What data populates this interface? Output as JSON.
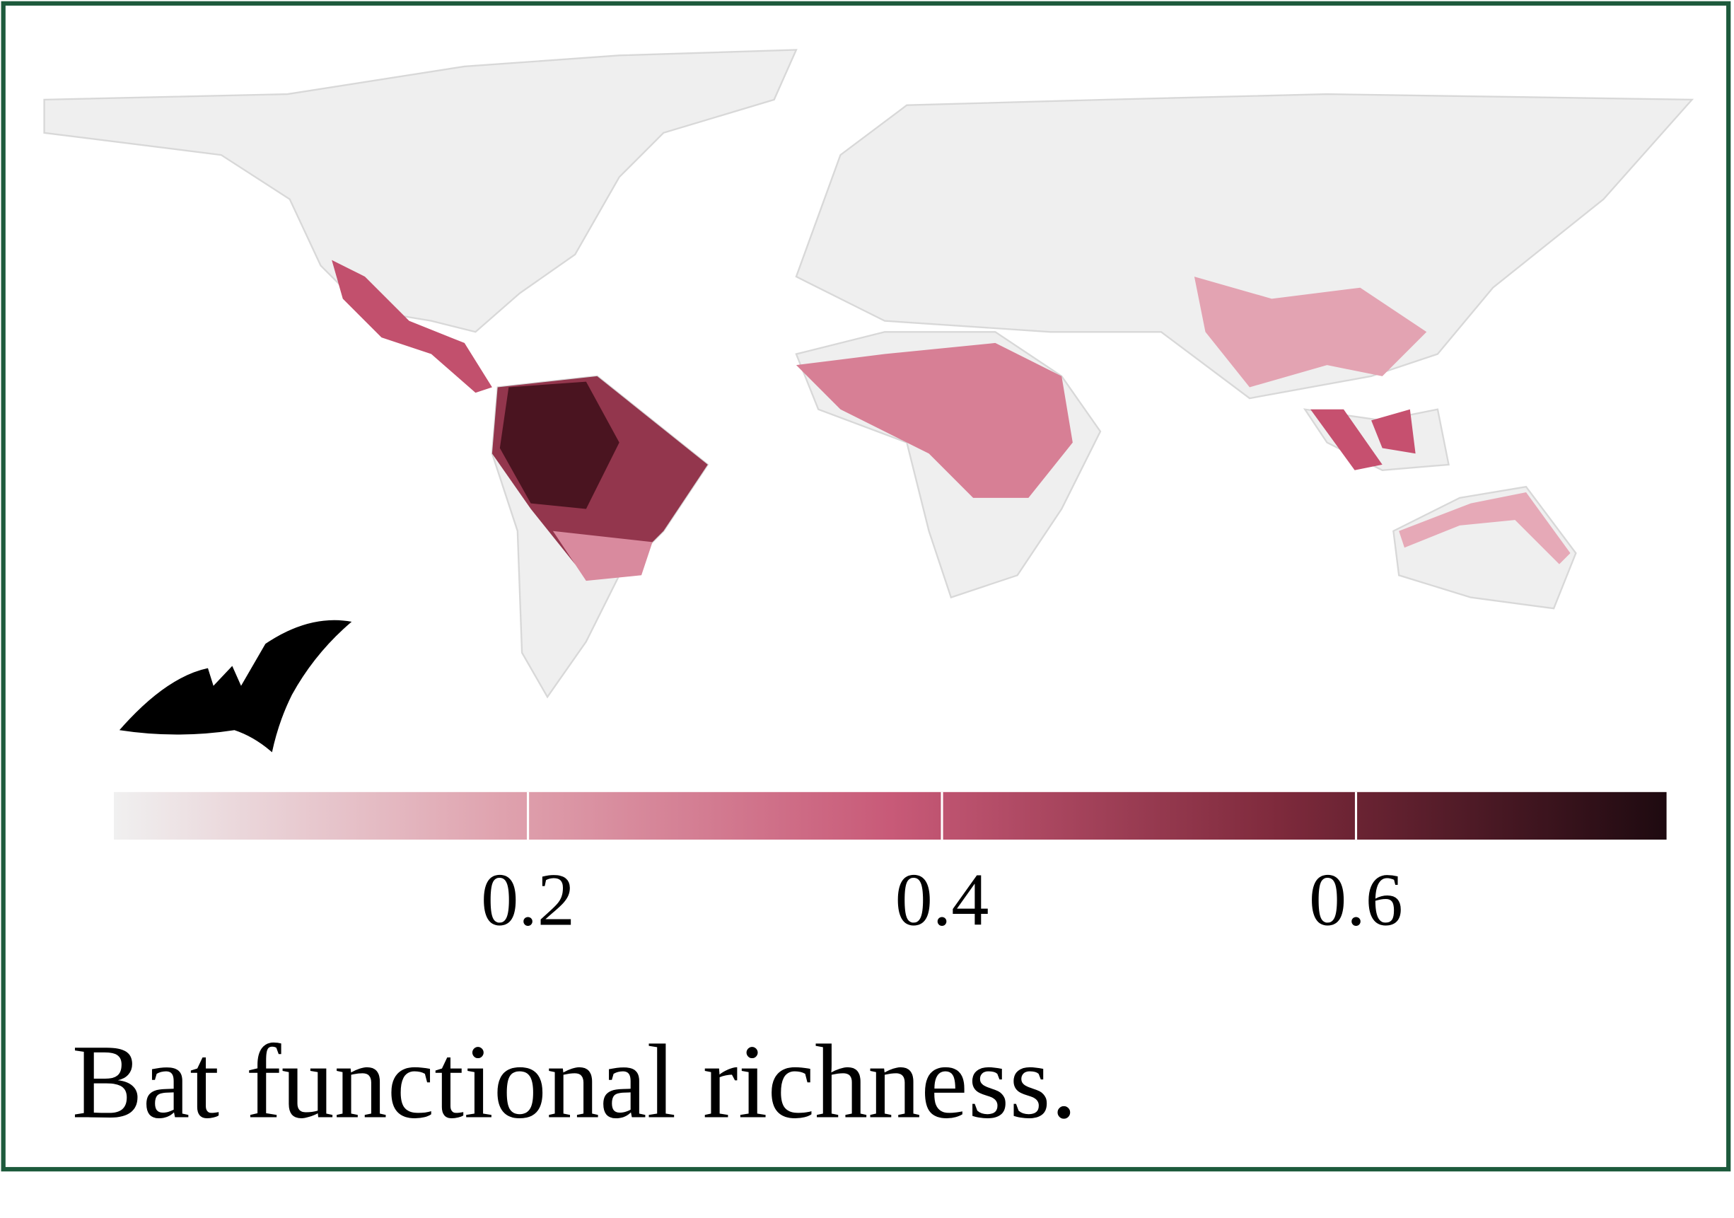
{
  "chart_data": {
    "type": "map",
    "title": "Bat functional richness.",
    "colorbar": {
      "colors": [
        "#f0f0f0",
        "#dfa2ae",
        "#c85a78",
        "#7e2a3c",
        "#1e0a10"
      ],
      "lim": [
        0,
        0.75
      ],
      "ticks": [
        0.2,
        0.4,
        0.6
      ]
    }
  }
}
